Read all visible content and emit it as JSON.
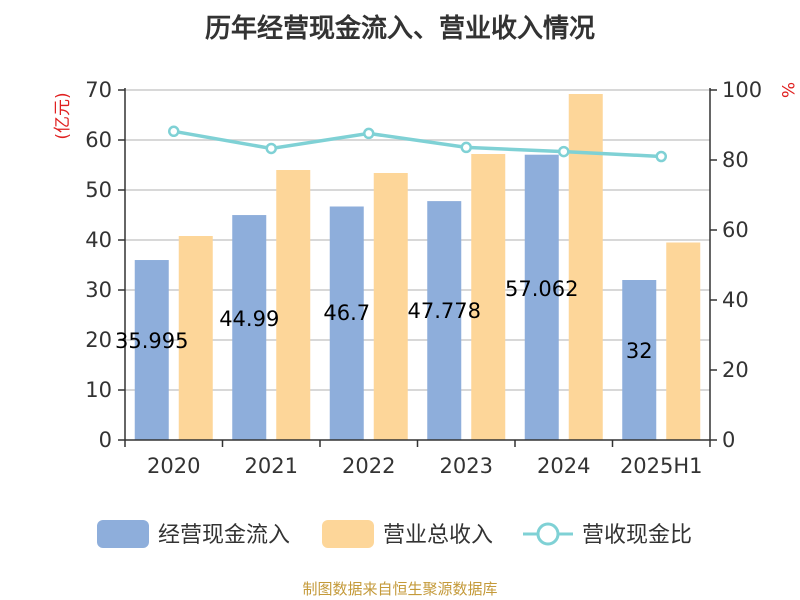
{
  "chart_data": {
    "type": "bar",
    "title": "历年经营现金流入、营业收入情况",
    "categories": [
      "2020",
      "2021",
      "2022",
      "2023",
      "2024",
      "2025H1"
    ],
    "series": [
      {
        "name": "经营现金流入",
        "type": "bar",
        "axis": "left",
        "color": "#8eaedb",
        "values": [
          35.995,
          44.99,
          46.7,
          47.778,
          57.062,
          32
        ],
        "labels": [
          "35.995",
          "44.99",
          "46.7",
          "47.778",
          "57.062",
          "32"
        ]
      },
      {
        "name": "营业总收入",
        "type": "bar",
        "axis": "left",
        "color": "#fdd699",
        "values": [
          40.8,
          54.0,
          53.4,
          57.2,
          69.2,
          39.5
        ]
      },
      {
        "name": "营收现金比",
        "type": "line",
        "axis": "right",
        "color": "#7fd1d5",
        "values": [
          88.2,
          83.3,
          87.6,
          83.6,
          82.4,
          81.0
        ]
      }
    ],
    "y_left": {
      "unit": "(亿元)",
      "min": 0,
      "max": 70,
      "ticks": [
        "0",
        "10",
        "20",
        "30",
        "40",
        "50",
        "60",
        "70"
      ]
    },
    "y_right": {
      "unit": "%",
      "min": 0,
      "max": 100,
      "ticks": [
        "0",
        "20",
        "40",
        "60",
        "80",
        "100"
      ]
    },
    "grid": true,
    "legend": "bottom"
  },
  "footer": {
    "source": "制图数据来自恒生聚源数据库"
  }
}
